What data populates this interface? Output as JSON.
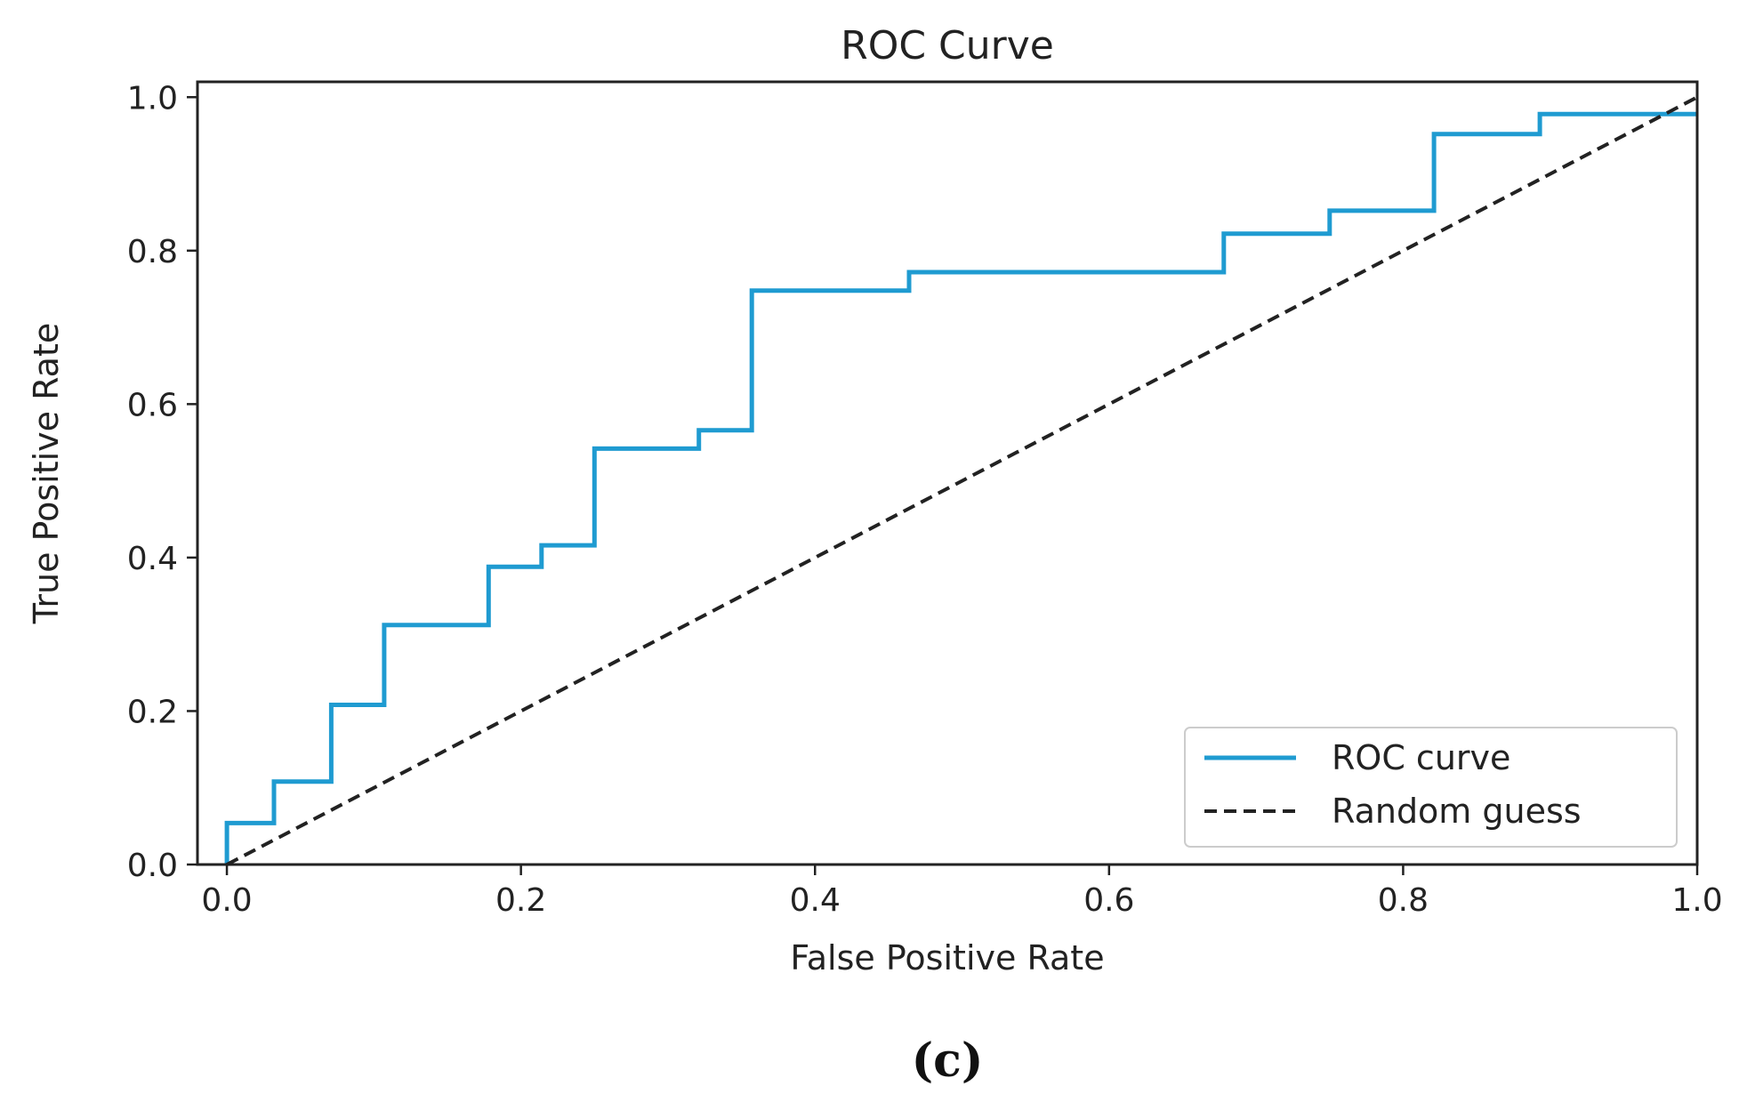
{
  "chart_data": {
    "type": "line",
    "title": "ROC Curve",
    "xlabel": "False Positive Rate",
    "ylabel": "True Positive Rate",
    "xlim": [
      -0.02,
      1.0
    ],
    "ylim": [
      0.0,
      1.02
    ],
    "x_ticks": [
      "0.0",
      "0.2",
      "0.4",
      "0.6",
      "0.8",
      "1.0"
    ],
    "y_ticks": [
      "0.0",
      "0.2",
      "0.4",
      "0.6",
      "0.8",
      "1.0"
    ],
    "grid": false,
    "legend_position": "bottom-right",
    "series": [
      {
        "name": "ROC curve",
        "color": "#1f9bd1",
        "style": "solid",
        "x": [
          0.0,
          0.0,
          0.032,
          0.032,
          0.071,
          0.071,
          0.107,
          0.107,
          0.178,
          0.178,
          0.214,
          0.214,
          0.25,
          0.25,
          0.321,
          0.321,
          0.357,
          0.357,
          0.464,
          0.464,
          0.678,
          0.678,
          0.75,
          0.75,
          0.821,
          0.821,
          0.893,
          0.893,
          1.0
        ],
        "y": [
          0.0,
          0.054,
          0.054,
          0.108,
          0.108,
          0.208,
          0.208,
          0.312,
          0.312,
          0.388,
          0.388,
          0.416,
          0.416,
          0.542,
          0.542,
          0.566,
          0.566,
          0.748,
          0.748,
          0.772,
          0.772,
          0.822,
          0.822,
          0.852,
          0.852,
          0.952,
          0.952,
          0.978,
          0.978
        ]
      },
      {
        "name": "Random guess",
        "color": "#222222",
        "style": "dashed",
        "x": [
          0.0,
          1.0
        ],
        "y": [
          0.0,
          1.0
        ]
      }
    ]
  },
  "caption": "(c)"
}
